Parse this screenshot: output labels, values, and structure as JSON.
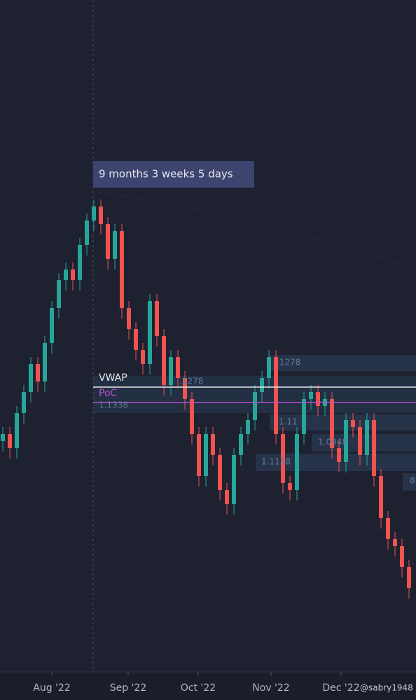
{
  "chart_data": {
    "type": "candlestick",
    "candles": [
      [
        33,
        35,
        31.5,
        34
      ],
      [
        34,
        35,
        30.5,
        32
      ],
      [
        32,
        38,
        30.5,
        37
      ],
      [
        37,
        41,
        35.5,
        40
      ],
      [
        40,
        45,
        38.5,
        44
      ],
      [
        44,
        45,
        40,
        41.5
      ],
      [
        41.5,
        48,
        40,
        47
      ],
      [
        47,
        53,
        45.5,
        52
      ],
      [
        52,
        57,
        50.5,
        56
      ],
      [
        56,
        58.5,
        54.5,
        57.5
      ],
      [
        57.5,
        58.5,
        54.5,
        56
      ],
      [
        56,
        62,
        54.5,
        61
      ],
      [
        61,
        65.5,
        59.5,
        64.5
      ],
      [
        64.5,
        67.5,
        63,
        66.5
      ],
      [
        66.5,
        67.5,
        62.5,
        64
      ],
      [
        64,
        65,
        57.5,
        59
      ],
      [
        59,
        64,
        57.5,
        63
      ],
      [
        63,
        64,
        50.5,
        52
      ],
      [
        52,
        53,
        47.5,
        49
      ],
      [
        49,
        50,
        44.5,
        46
      ],
      [
        46,
        47,
        42.5,
        44
      ],
      [
        44,
        54,
        42.5,
        53
      ],
      [
        53,
        54,
        46.5,
        48
      ],
      [
        48,
        49,
        39.5,
        41
      ],
      [
        41,
        46,
        39.5,
        45
      ],
      [
        45,
        46,
        40.5,
        42
      ],
      [
        42,
        43,
        37.5,
        39
      ],
      [
        39,
        40,
        32.5,
        34
      ],
      [
        34,
        35,
        26.5,
        28
      ],
      [
        28,
        35,
        26.5,
        34
      ],
      [
        34,
        35,
        29.5,
        31
      ],
      [
        31,
        32,
        24.5,
        26
      ],
      [
        26,
        27,
        22.5,
        24
      ],
      [
        24,
        32,
        22.5,
        31
      ],
      [
        31,
        35,
        29.5,
        34
      ],
      [
        34,
        37,
        32.5,
        36
      ],
      [
        36,
        41,
        34.5,
        40
      ],
      [
        40,
        43,
        38.5,
        42
      ],
      [
        42,
        46,
        40.5,
        45
      ],
      [
        45,
        46,
        32.5,
        34
      ],
      [
        34,
        35,
        25.5,
        27
      ],
      [
        27,
        28,
        24.5,
        26
      ],
      [
        26,
        35,
        24.5,
        34
      ],
      [
        34,
        40,
        32.5,
        39
      ],
      [
        39,
        41,
        37.5,
        40
      ],
      [
        40,
        41,
        36.5,
        38
      ],
      [
        38,
        40,
        36.5,
        39
      ],
      [
        39,
        40,
        30.5,
        32
      ],
      [
        32,
        33,
        28.5,
        30
      ],
      [
        30,
        37,
        28.5,
        36
      ],
      [
        36,
        37,
        33.5,
        35
      ],
      [
        35,
        36,
        29.5,
        31
      ],
      [
        31,
        37,
        29.5,
        36
      ],
      [
        36,
        37,
        26.5,
        28
      ],
      [
        28,
        29,
        20.5,
        22
      ],
      [
        22,
        23,
        17.5,
        19
      ],
      [
        19,
        20,
        16.5,
        18
      ],
      [
        18,
        19,
        13.5,
        15
      ],
      [
        15,
        16,
        10.5,
        12
      ]
    ],
    "up_color": "#26a69a",
    "down_color": "#ef5350",
    "ylim": [
      0,
      96
    ],
    "lines": [
      {
        "name": "VWAP",
        "value": 40.7,
        "color": "#e8e8e8"
      },
      {
        "name": "PoC",
        "value": 38.5,
        "color": "#b84fd0"
      }
    ],
    "profile_labels": [
      ".1278",
      ".1278",
      "1.1338",
      "1.11",
      "1.0948",
      "1.1158",
      "8"
    ],
    "measure_label": "9 months 3 weeks 5 days",
    "x_labels": [
      "Aug '22",
      "Sep '22",
      "Oct '22",
      "Nov '22",
      "Dec '22"
    ],
    "watermark": "@sabry1948"
  }
}
